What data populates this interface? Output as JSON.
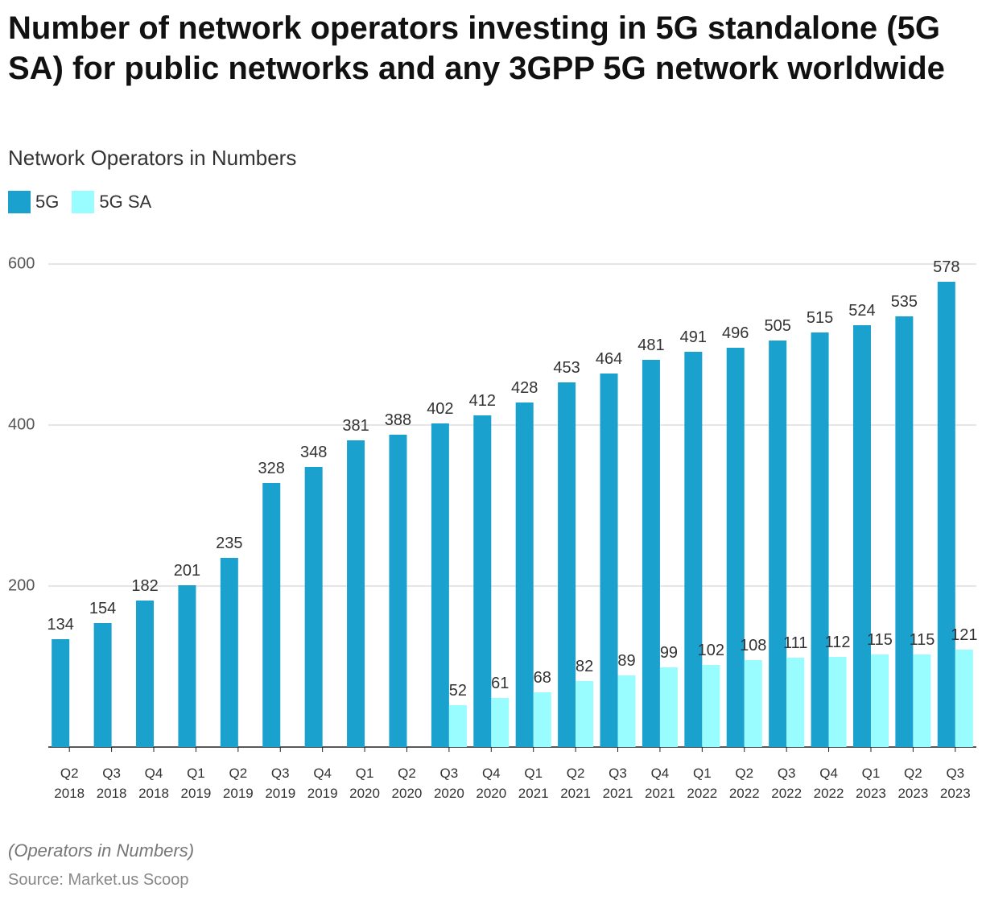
{
  "chart_data": {
    "type": "bar",
    "title": "Number of network operators investing in 5G standalone (5G SA) for public networks and any 3GPP 5G network worldwide",
    "subtitle": "Network Operators in Numbers",
    "note": "(Operators in Numbers)",
    "source": "Source: Market.us Scoop",
    "categories": [
      "Q2 2018",
      "Q3 2018",
      "Q4 2018",
      "Q1 2019",
      "Q2 2019",
      "Q3 2019",
      "Q4 2019",
      "Q1 2020",
      "Q2 2020",
      "Q3 2020",
      "Q4 2020",
      "Q1 2021",
      "Q2 2021",
      "Q3 2021",
      "Q4 2021",
      "Q1 2022",
      "Q2 2022",
      "Q3 2022",
      "Q4 2022",
      "Q1 2023",
      "Q2 2023",
      "Q3 2023"
    ],
    "series": [
      {
        "name": "5G",
        "color": "#1aa1cd",
        "values": [
          134,
          154,
          182,
          201,
          235,
          328,
          348,
          381,
          388,
          402,
          412,
          428,
          453,
          464,
          481,
          491,
          496,
          505,
          515,
          524,
          535,
          578
        ]
      },
      {
        "name": "5G SA",
        "color": "#99fcff",
        "values": [
          null,
          null,
          null,
          null,
          null,
          null,
          null,
          null,
          null,
          52,
          61,
          68,
          82,
          89,
          99,
          102,
          108,
          111,
          112,
          115,
          115,
          121
        ]
      }
    ],
    "ylim": [
      0,
      600
    ],
    "yticks": [
      200,
      400,
      600
    ],
    "grid": true
  }
}
